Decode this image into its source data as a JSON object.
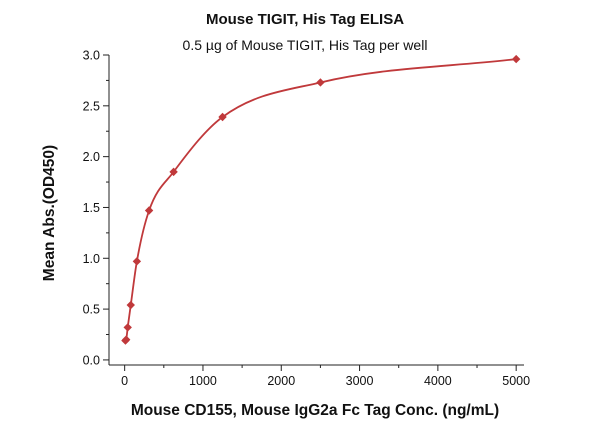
{
  "chart_data": {
    "type": "scatter",
    "title": "Mouse TIGIT, His Tag ELISA",
    "subtitle": "0.5 µg of Mouse TIGIT, His Tag per well",
    "xlabel": "Mouse CD155, Mouse IgG2a Fc Tag Conc. (ng/mL)",
    "ylabel": "Mean Abs.(OD450)",
    "xlim": [
      -200,
      5100
    ],
    "ylim": [
      -0.05,
      3.0
    ],
    "x_ticks": [
      0,
      1000,
      2000,
      3000,
      4000,
      5000
    ],
    "y_ticks": [
      "0.0",
      "0.5",
      "1.0",
      "1.5",
      "2.0",
      "2.5",
      "3.0"
    ],
    "grid": false,
    "legend": "none",
    "series": [
      {
        "color": "#c0393b",
        "marker": "diamond",
        "fit": "curve",
        "x": [
          9.8,
          19.5,
          39,
          78,
          156,
          312,
          625,
          1250,
          2500,
          5000
        ],
        "y": [
          0.19,
          0.2,
          0.32,
          0.54,
          0.97,
          1.47,
          1.85,
          2.39,
          2.73,
          2.96
        ]
      }
    ]
  }
}
